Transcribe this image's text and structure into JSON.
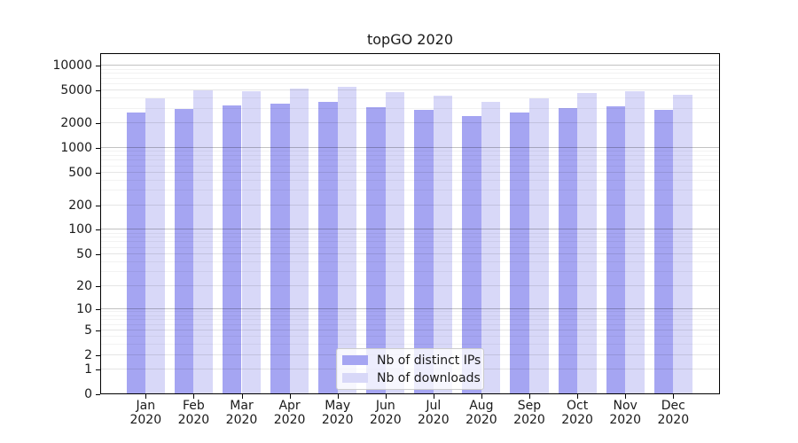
{
  "chart_data": {
    "type": "bar",
    "title": "topGO 2020",
    "months": [
      "Jan",
      "Feb",
      "Mar",
      "Apr",
      "May",
      "Jun",
      "Jul",
      "Aug",
      "Sep",
      "Oct",
      "Nov",
      "Dec"
    ],
    "year": "2020",
    "series": [
      {
        "name": "Nb of distinct IPs",
        "color": "#a5a5f2",
        "values": [
          2680,
          2960,
          3270,
          3490,
          3670,
          3160,
          2910,
          2460,
          2700,
          3060,
          3220,
          2910
        ]
      },
      {
        "name": "Nb of downloads",
        "color": "#d8d8f8",
        "values": [
          3990,
          4990,
          4900,
          5240,
          5590,
          4750,
          4300,
          3640,
          3990,
          4700,
          4900,
          4440
        ]
      }
    ],
    "y_ticks": [
      0,
      1,
      2,
      5,
      10,
      20,
      50,
      100,
      200,
      500,
      1000,
      2000,
      5000,
      10000
    ],
    "y_minor_ticks_per_decade": [
      3,
      4,
      6,
      7,
      8,
      9
    ],
    "scale": "log1p",
    "ylim": [
      0,
      14270
    ],
    "grid": true,
    "legend_position": "lower center",
    "colors": {
      "grid_power10": "rgba(0,0,0,0.24)",
      "grid_major": "rgba(0,0,0,0.10)",
      "grid_minor": "rgba(0,0,0,0.05)",
      "axis": "#000000"
    }
  }
}
